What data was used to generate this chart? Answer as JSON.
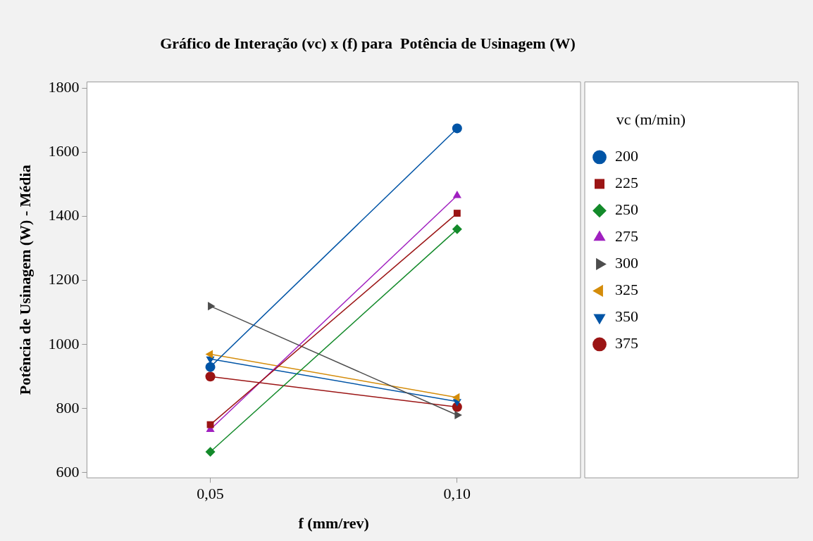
{
  "chart_data": {
    "type": "line",
    "title": "Gráfico de Interação (vc) x (f) para  Potência de Usinagem (W)",
    "xlabel": "f (mm/rev)",
    "ylabel": "Potência de Usinagem (W) - Média",
    "legend_title": "vc (m/min)",
    "legend": "right",
    "grid": false,
    "line_style": "solid",
    "categories": [
      "0,05",
      "0,10"
    ],
    "ylim": [
      584,
      1820
    ],
    "yticks": [
      600,
      800,
      1000,
      1200,
      1400,
      1600,
      1800
    ],
    "series": [
      {
        "name": "200",
        "color": "#0054a6",
        "marker": "circle",
        "values": [
          930,
          1675
        ]
      },
      {
        "name": "225",
        "color": "#9b1414",
        "marker": "square",
        "values": [
          750,
          1410
        ]
      },
      {
        "name": "250",
        "color": "#138a2a",
        "marker": "diamond",
        "values": [
          665,
          1360
        ]
      },
      {
        "name": "275",
        "color": "#a020c0",
        "marker": "triangle",
        "values": [
          735,
          1465
        ]
      },
      {
        "name": "300",
        "color": "#4d4d4d",
        "marker": "triangle-right",
        "values": [
          1120,
          780
        ]
      },
      {
        "name": "325",
        "color": "#d48c0a",
        "marker": "triangle-left",
        "values": [
          970,
          835
        ]
      },
      {
        "name": "350",
        "color": "#0054a6",
        "marker": "triangle-down",
        "values": [
          955,
          822
        ]
      },
      {
        "name": "375",
        "color": "#9b1414",
        "marker": "circle",
        "values": [
          900,
          805
        ]
      }
    ]
  }
}
